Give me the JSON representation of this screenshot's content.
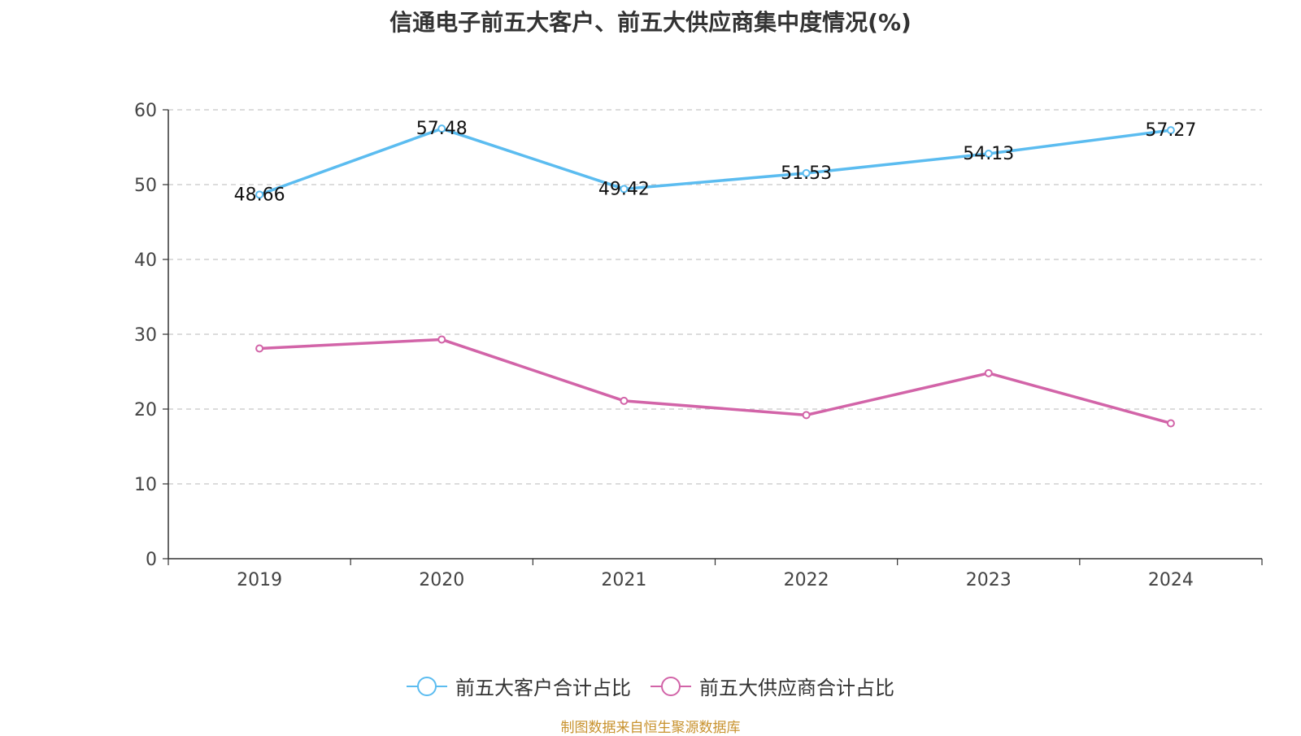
{
  "chart_data": {
    "type": "line",
    "title": "信通电子前五大客户、前五大供应商集中度情况(%)",
    "categories": [
      "2019",
      "2020",
      "2021",
      "2022",
      "2023",
      "2024"
    ],
    "ylim": [
      0,
      60
    ],
    "yticks": [
      "0",
      "10",
      "20",
      "30",
      "40",
      "50",
      "60"
    ],
    "grid": true,
    "legend_position": "bottom",
    "series": [
      {
        "name": "前五大客户合计占比",
        "color": "#5bbcf0",
        "values": [
          48.66,
          57.48,
          49.42,
          51.53,
          54.13,
          57.27
        ],
        "labels": [
          "48.66",
          "57.48",
          "49.42",
          "51.53",
          "54.13",
          "57.27"
        ]
      },
      {
        "name": "前五大供应商合计占比",
        "color": "#d264a8",
        "values": [
          28.1,
          29.3,
          21.1,
          19.2,
          24.8,
          18.1
        ],
        "labels": []
      }
    ]
  },
  "footer": {
    "source": "制图数据来自恒生聚源数据库"
  }
}
